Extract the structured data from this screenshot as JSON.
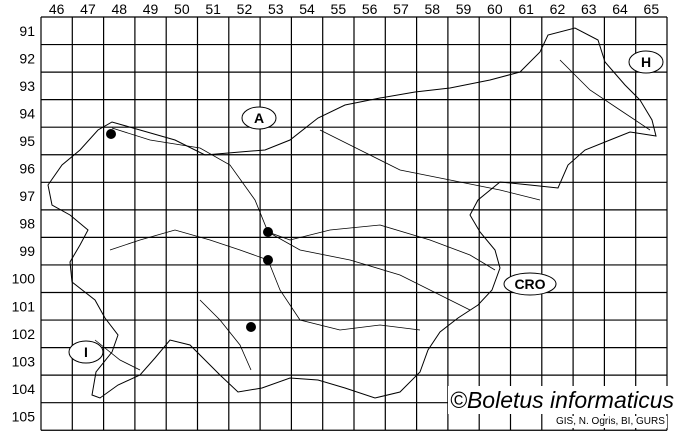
{
  "map": {
    "columns": [
      "46",
      "47",
      "48",
      "49",
      "50",
      "51",
      "52",
      "53",
      "54",
      "55",
      "56",
      "57",
      "58",
      "59",
      "60",
      "61",
      "62",
      "63",
      "64",
      "65"
    ],
    "rows": [
      "91",
      "92",
      "93",
      "94",
      "95",
      "96",
      "97",
      "98",
      "99",
      "100",
      "101",
      "102",
      "103",
      "104",
      "105"
    ],
    "country_labels": [
      {
        "id": "A",
        "text": "A"
      },
      {
        "id": "H",
        "text": "H"
      },
      {
        "id": "CRO",
        "text": "CRO"
      },
      {
        "id": "I",
        "text": "I"
      }
    ],
    "records": [
      {
        "col": "47",
        "row": "95"
      },
      {
        "col": "52",
        "row": "98"
      },
      {
        "col": "52",
        "row": "99"
      },
      {
        "col": "52",
        "row": "102"
      }
    ],
    "line_color": "#000000",
    "dot_color": "#000000"
  },
  "credit": "©Boletus informaticus",
  "source": "GIS, N. Ogris, BI, GURS"
}
